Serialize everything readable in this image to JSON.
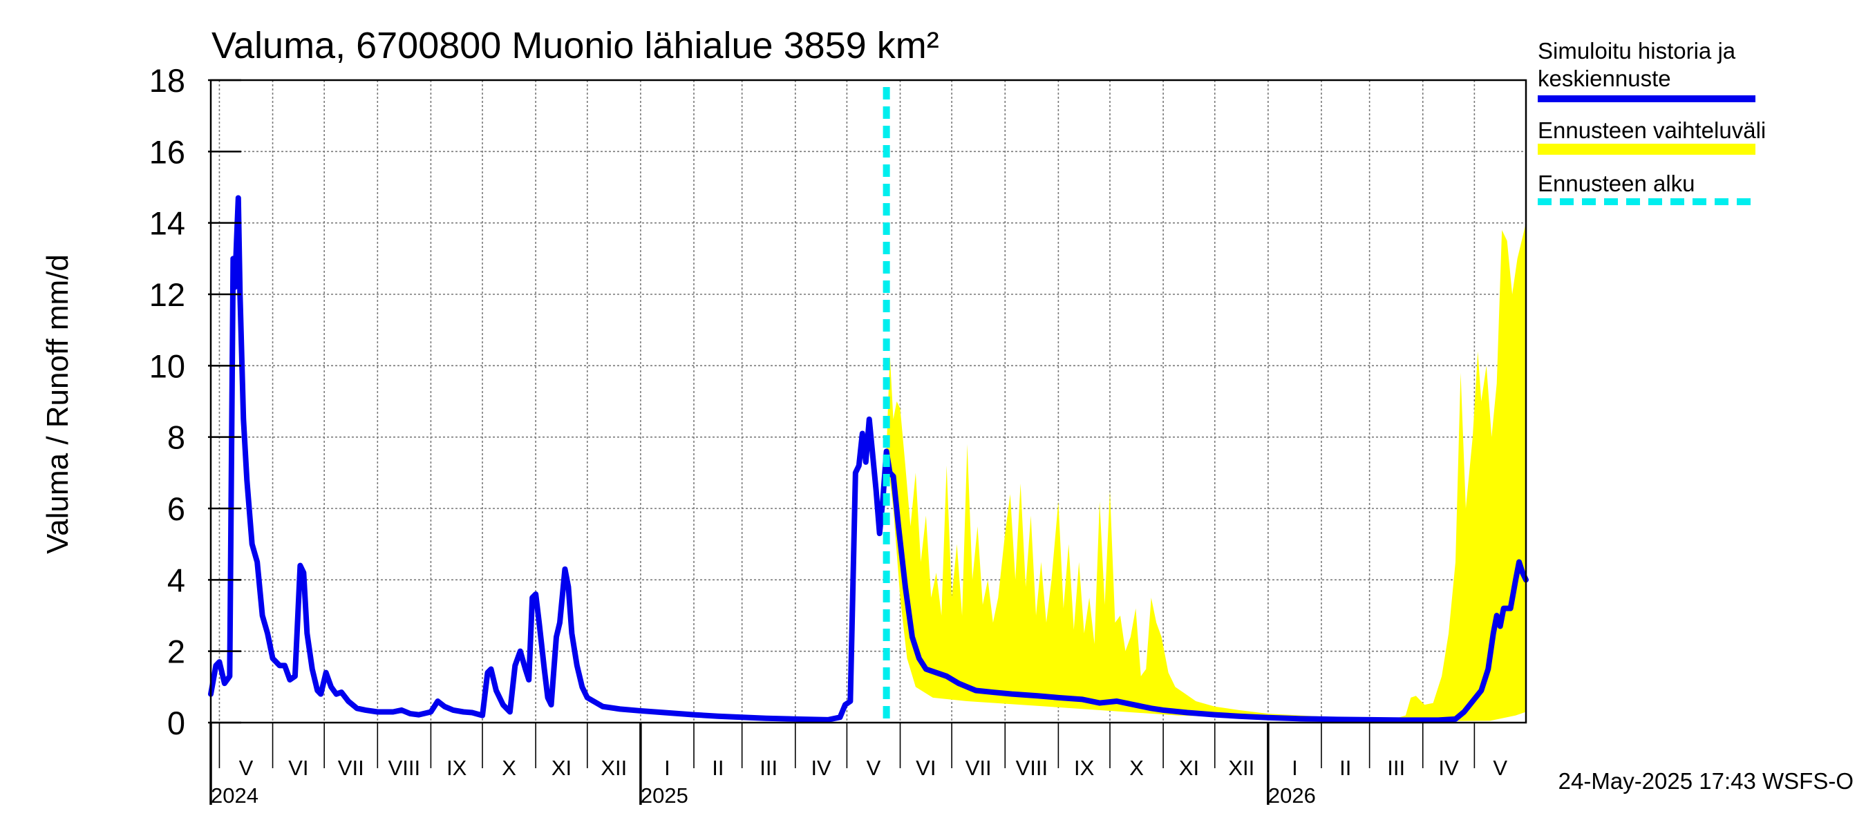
{
  "chart_data": {
    "type": "area",
    "title": "Valuma, 6700800 Muonio lähialue 3859 km²",
    "ylabel": "Valuma / Runoff    mm/d",
    "ylim": [
      0,
      18
    ],
    "yticks": [
      "0",
      "2",
      "4",
      "6",
      "8",
      "10",
      "12",
      "14",
      "16",
      "18"
    ],
    "grid": true,
    "legend_position": "right",
    "months": [
      "V",
      "VI",
      "VII",
      "VIII",
      "IX",
      "X",
      "XI",
      "XII",
      "I",
      "II",
      "III",
      "IV",
      "V",
      "VI",
      "VII",
      "VIII",
      "IX",
      "X",
      "XI",
      "XII",
      "I",
      "II",
      "III",
      "IV",
      "V"
    ],
    "years": [
      "2024",
      "2025",
      "2026"
    ],
    "x_range": [
      "2024-04-26",
      "2026-05-31"
    ],
    "forecast_start": "2025-05-24",
    "series": [
      {
        "name": "Simuloitu historia ja keskiennuste",
        "color": "#0000ee",
        "points": [
          [
            "2024-04-26",
            0.8
          ],
          [
            "2024-04-29",
            1.6
          ],
          [
            "2024-05-01",
            1.7
          ],
          [
            "2024-05-04",
            1.1
          ],
          [
            "2024-05-07",
            1.3
          ],
          [
            "2024-05-09",
            13.0
          ],
          [
            "2024-05-10",
            12.2
          ],
          [
            "2024-05-11",
            13.5
          ],
          [
            "2024-05-12",
            14.7
          ],
          [
            "2024-05-13",
            12.0
          ],
          [
            "2024-05-15",
            8.5
          ],
          [
            "2024-05-17",
            6.8
          ],
          [
            "2024-05-20",
            5.0
          ],
          [
            "2024-05-23",
            4.5
          ],
          [
            "2024-05-26",
            3.0
          ],
          [
            "2024-05-29",
            2.5
          ],
          [
            "2024-06-01",
            1.8
          ],
          [
            "2024-06-05",
            1.6
          ],
          [
            "2024-06-08",
            1.6
          ],
          [
            "2024-06-11",
            1.2
          ],
          [
            "2024-06-14",
            1.3
          ],
          [
            "2024-06-17",
            4.4
          ],
          [
            "2024-06-19",
            4.2
          ],
          [
            "2024-06-21",
            2.5
          ],
          [
            "2024-06-24",
            1.5
          ],
          [
            "2024-06-27",
            0.9
          ],
          [
            "2024-06-29",
            0.8
          ],
          [
            "2024-07-02",
            1.4
          ],
          [
            "2024-07-05",
            1.0
          ],
          [
            "2024-07-08",
            0.8
          ],
          [
            "2024-07-11",
            0.85
          ],
          [
            "2024-07-15",
            0.6
          ],
          [
            "2024-07-20",
            0.4
          ],
          [
            "2024-07-25",
            0.35
          ],
          [
            "2024-08-01",
            0.3
          ],
          [
            "2024-08-10",
            0.3
          ],
          [
            "2024-08-15",
            0.35
          ],
          [
            "2024-08-20",
            0.25
          ],
          [
            "2024-08-25",
            0.22
          ],
          [
            "2024-09-01",
            0.3
          ],
          [
            "2024-09-05",
            0.6
          ],
          [
            "2024-09-09",
            0.45
          ],
          [
            "2024-09-14",
            0.35
          ],
          [
            "2024-09-20",
            0.3
          ],
          [
            "2024-09-25",
            0.28
          ],
          [
            "2024-10-01",
            0.2
          ],
          [
            "2024-10-04",
            1.4
          ],
          [
            "2024-10-06",
            1.5
          ],
          [
            "2024-10-09",
            0.9
          ],
          [
            "2024-10-13",
            0.5
          ],
          [
            "2024-10-17",
            0.3
          ],
          [
            "2024-10-20",
            1.6
          ],
          [
            "2024-10-23",
            2.0
          ],
          [
            "2024-10-26",
            1.5
          ],
          [
            "2024-10-28",
            1.2
          ],
          [
            "2024-10-30",
            3.5
          ],
          [
            "2024-11-01",
            3.6
          ],
          [
            "2024-11-03",
            2.8
          ],
          [
            "2024-11-06",
            1.5
          ],
          [
            "2024-11-08",
            0.7
          ],
          [
            "2024-11-10",
            0.5
          ],
          [
            "2024-11-13",
            2.4
          ],
          [
            "2024-11-15",
            2.8
          ],
          [
            "2024-11-18",
            4.3
          ],
          [
            "2024-11-20",
            3.8
          ],
          [
            "2024-11-22",
            2.5
          ],
          [
            "2024-11-25",
            1.6
          ],
          [
            "2024-11-28",
            1.0
          ],
          [
            "2024-12-01",
            0.7
          ],
          [
            "2024-12-10",
            0.45
          ],
          [
            "2024-12-20",
            0.38
          ],
          [
            "2025-01-01",
            0.33
          ],
          [
            "2025-01-15",
            0.28
          ],
          [
            "2025-02-01",
            0.22
          ],
          [
            "2025-02-15",
            0.18
          ],
          [
            "2025-03-01",
            0.15
          ],
          [
            "2025-03-15",
            0.12
          ],
          [
            "2025-04-01",
            0.1
          ],
          [
            "2025-04-20",
            0.08
          ],
          [
            "2025-04-27",
            0.15
          ],
          [
            "2025-04-30",
            0.5
          ],
          [
            "2025-05-03",
            0.6
          ],
          [
            "2025-05-06",
            7.0
          ],
          [
            "2025-05-08",
            7.2
          ],
          [
            "2025-05-10",
            8.1
          ],
          [
            "2025-05-12",
            7.3
          ],
          [
            "2025-05-14",
            8.5
          ],
          [
            "2025-05-16",
            7.5
          ],
          [
            "2025-05-18",
            6.5
          ],
          [
            "2025-05-20",
            5.3
          ],
          [
            "2025-05-22",
            6.3
          ],
          [
            "2025-05-24",
            7.6
          ],
          [
            "2025-05-26",
            7.0
          ],
          [
            "2025-05-28",
            6.9
          ],
          [
            "2025-05-31",
            5.5
          ],
          [
            "2025-06-04",
            3.8
          ],
          [
            "2025-06-08",
            2.4
          ],
          [
            "2025-06-12",
            1.8
          ],
          [
            "2025-06-16",
            1.5
          ],
          [
            "2025-06-22",
            1.4
          ],
          [
            "2025-06-28",
            1.3
          ],
          [
            "2025-07-05",
            1.1
          ],
          [
            "2025-07-15",
            0.9
          ],
          [
            "2025-07-25",
            0.85
          ],
          [
            "2025-08-05",
            0.8
          ],
          [
            "2025-08-20",
            0.75
          ],
          [
            "2025-09-01",
            0.7
          ],
          [
            "2025-09-15",
            0.65
          ],
          [
            "2025-09-25",
            0.55
          ],
          [
            "2025-10-05",
            0.6
          ],
          [
            "2025-10-15",
            0.5
          ],
          [
            "2025-10-25",
            0.4
          ],
          [
            "2025-11-01",
            0.35
          ],
          [
            "2025-11-15",
            0.28
          ],
          [
            "2025-12-01",
            0.22
          ],
          [
            "2025-12-15",
            0.18
          ],
          [
            "2026-01-01",
            0.14
          ],
          [
            "2026-01-20",
            0.11
          ],
          [
            "2026-02-10",
            0.09
          ],
          [
            "2026-03-01",
            0.08
          ],
          [
            "2026-03-20",
            0.07
          ],
          [
            "2026-04-10",
            0.07
          ],
          [
            "2026-04-20",
            0.1
          ],
          [
            "2026-04-25",
            0.3
          ],
          [
            "2026-04-30",
            0.6
          ],
          [
            "2026-05-05",
            0.9
          ],
          [
            "2026-05-09",
            1.5
          ],
          [
            "2026-05-12",
            2.5
          ],
          [
            "2026-05-14",
            3.0
          ],
          [
            "2026-05-16",
            2.7
          ],
          [
            "2026-05-18",
            3.2
          ],
          [
            "2026-05-22",
            3.2
          ],
          [
            "2026-05-25",
            4.0
          ],
          [
            "2026-05-27",
            4.5
          ],
          [
            "2026-05-29",
            4.2
          ],
          [
            "2026-05-31",
            4.0
          ]
        ]
      },
      {
        "name": "Ennusteen vaihteluväli",
        "color": "#ffff00",
        "upper": [
          [
            "2025-05-24",
            7.6
          ],
          [
            "2025-05-26",
            10.3
          ],
          [
            "2025-05-28",
            8.5
          ],
          [
            "2025-05-30",
            9.0
          ],
          [
            "2025-06-01",
            8.8
          ],
          [
            "2025-06-04",
            7.2
          ],
          [
            "2025-06-07",
            5.5
          ],
          [
            "2025-06-10",
            7.0
          ],
          [
            "2025-06-13",
            4.5
          ],
          [
            "2025-06-16",
            5.8
          ],
          [
            "2025-06-19",
            3.5
          ],
          [
            "2025-06-22",
            4.2
          ],
          [
            "2025-06-25",
            3.0
          ],
          [
            "2025-06-28",
            7.2
          ],
          [
            "2025-07-01",
            3.5
          ],
          [
            "2025-07-04",
            5.0
          ],
          [
            "2025-07-07",
            3.0
          ],
          [
            "2025-07-10",
            7.8
          ],
          [
            "2025-07-13",
            4.0
          ],
          [
            "2025-07-16",
            5.5
          ],
          [
            "2025-07-19",
            3.3
          ],
          [
            "2025-07-22",
            4.0
          ],
          [
            "2025-07-25",
            2.8
          ],
          [
            "2025-07-28",
            3.5
          ],
          [
            "2025-08-01",
            5.3
          ],
          [
            "2025-08-04",
            6.4
          ],
          [
            "2025-08-07",
            4.0
          ],
          [
            "2025-08-10",
            6.7
          ],
          [
            "2025-08-13",
            3.8
          ],
          [
            "2025-08-16",
            5.8
          ],
          [
            "2025-08-19",
            3.0
          ],
          [
            "2025-08-22",
            4.5
          ],
          [
            "2025-08-25",
            2.8
          ],
          [
            "2025-08-28",
            4.0
          ],
          [
            "2025-09-01",
            6.2
          ],
          [
            "2025-09-04",
            3.2
          ],
          [
            "2025-09-07",
            5.0
          ],
          [
            "2025-09-10",
            2.6
          ],
          [
            "2025-09-13",
            4.5
          ],
          [
            "2025-09-16",
            2.5
          ],
          [
            "2025-09-19",
            3.5
          ],
          [
            "2025-09-22",
            2.2
          ],
          [
            "2025-09-25",
            6.2
          ],
          [
            "2025-09-28",
            3.3
          ],
          [
            "2025-10-01",
            6.5
          ],
          [
            "2025-10-04",
            2.8
          ],
          [
            "2025-10-07",
            3.0
          ],
          [
            "2025-10-10",
            2.0
          ],
          [
            "2025-10-13",
            2.4
          ],
          [
            "2025-10-16",
            3.2
          ],
          [
            "2025-10-19",
            1.3
          ],
          [
            "2025-10-22",
            1.5
          ],
          [
            "2025-10-25",
            3.5
          ],
          [
            "2025-10-28",
            2.8
          ],
          [
            "2025-10-31",
            2.4
          ],
          [
            "2025-11-04",
            1.4
          ],
          [
            "2025-11-08",
            1.0
          ],
          [
            "2025-11-14",
            0.8
          ],
          [
            "2025-11-20",
            0.6
          ],
          [
            "2025-12-01",
            0.45
          ],
          [
            "2025-12-15",
            0.35
          ],
          [
            "2026-01-01",
            0.25
          ],
          [
            "2026-01-20",
            0.2
          ],
          [
            "2026-02-10",
            0.15
          ],
          [
            "2026-03-01",
            0.12
          ],
          [
            "2026-03-15",
            0.1
          ],
          [
            "2026-03-22",
            0.2
          ],
          [
            "2026-03-25",
            0.7
          ],
          [
            "2026-03-28",
            0.75
          ],
          [
            "2026-04-02",
            0.5
          ],
          [
            "2026-04-07",
            0.55
          ],
          [
            "2026-04-12",
            1.3
          ],
          [
            "2026-04-16",
            2.5
          ],
          [
            "2026-04-20",
            4.5
          ],
          [
            "2026-04-23",
            9.8
          ],
          [
            "2026-04-26",
            6.0
          ],
          [
            "2026-04-30",
            8.0
          ],
          [
            "2026-05-03",
            10.4
          ],
          [
            "2026-05-05",
            9.0
          ],
          [
            "2026-05-08",
            10.0
          ],
          [
            "2026-05-11",
            8.0
          ],
          [
            "2026-05-14",
            9.5
          ],
          [
            "2026-05-17",
            13.8
          ],
          [
            "2026-05-20",
            13.5
          ],
          [
            "2026-05-23",
            12.0
          ],
          [
            "2026-05-26",
            13.0
          ],
          [
            "2026-05-31",
            14.0
          ]
        ],
        "lower": [
          [
            "2025-05-24",
            7.6
          ],
          [
            "2025-05-28",
            6.0
          ],
          [
            "2025-06-01",
            3.5
          ],
          [
            "2025-06-05",
            1.8
          ],
          [
            "2025-06-10",
            1.0
          ],
          [
            "2025-06-20",
            0.7
          ],
          [
            "2025-07-10",
            0.6
          ],
          [
            "2025-08-10",
            0.5
          ],
          [
            "2025-09-10",
            0.4
          ],
          [
            "2025-10-10",
            0.3
          ],
          [
            "2025-11-10",
            0.2
          ],
          [
            "2025-12-10",
            0.15
          ],
          [
            "2026-01-10",
            0.1
          ],
          [
            "2026-02-10",
            0.07
          ],
          [
            "2026-03-10",
            0.05
          ],
          [
            "2026-04-10",
            0.04
          ],
          [
            "2026-05-10",
            0.05
          ],
          [
            "2026-05-25",
            0.2
          ],
          [
            "2026-05-31",
            0.3
          ]
        ]
      },
      {
        "name": "Ennusteen alku",
        "color": "#00eeee"
      }
    ],
    "footer": "24-May-2025 17:43 WSFS-O"
  }
}
